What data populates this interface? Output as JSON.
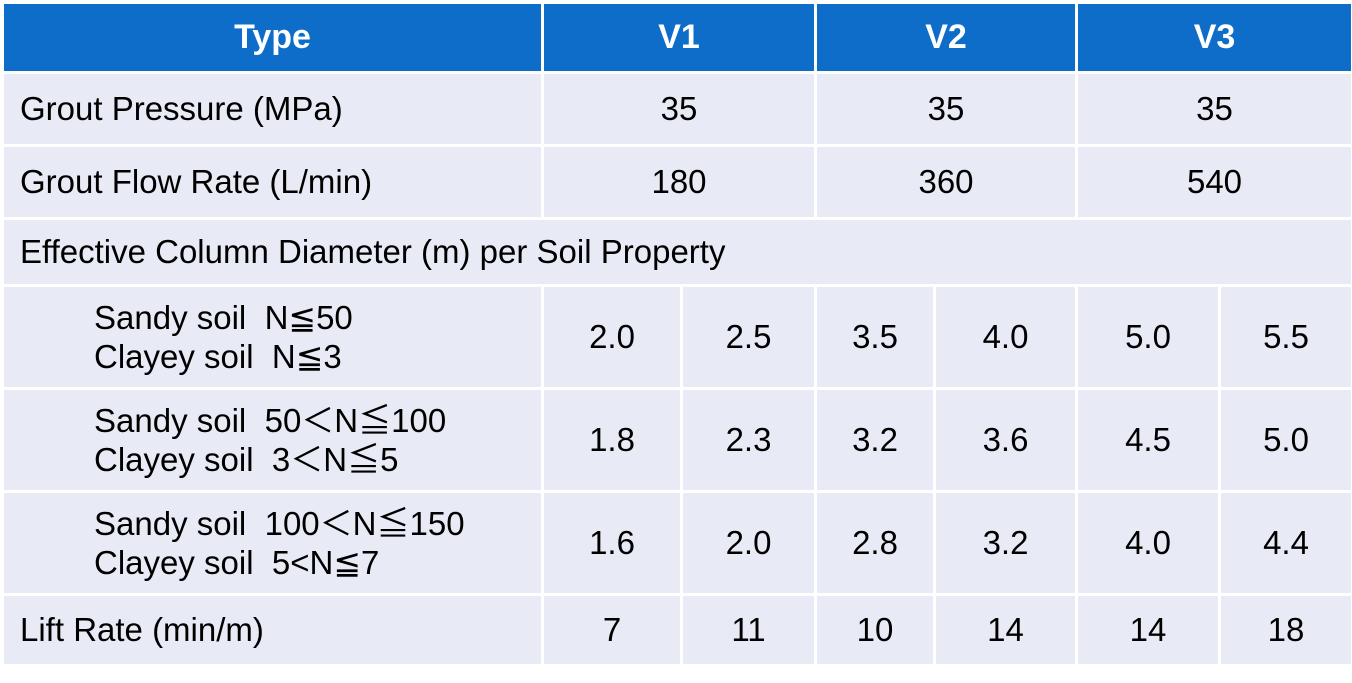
{
  "header": {
    "type": "Type",
    "v1": "V1",
    "v2": "V2",
    "v3": "V3"
  },
  "rows": {
    "pressure": {
      "label": "Grout Pressure (MPa)",
      "v1": "35",
      "v2": "35",
      "v3": "35"
    },
    "flow": {
      "label": "Grout Flow Rate (L/min)",
      "v1": "180",
      "v2": "360",
      "v3": "540"
    },
    "section": "Effective Column Diameter (m) per Soil Property",
    "soil": [
      {
        "sandy": "Sandy soil  N≦50",
        "clayey": "Clayey soil  N≦3",
        "values": [
          "2.0",
          "2.5",
          "3.5",
          "4.0",
          "5.0",
          "5.5"
        ]
      },
      {
        "sandy": "Sandy soil  50＜N≦100",
        "clayey": "Clayey soil  3＜N≦5",
        "values": [
          "1.8",
          "2.3",
          "3.2",
          "3.6",
          "4.5",
          "5.0"
        ]
      },
      {
        "sandy": "Sandy soil  100＜N≦150",
        "clayey": "Clayey soil  5<N≦7",
        "values": [
          "1.6",
          "2.0",
          "2.8",
          "3.2",
          "4.0",
          "4.4"
        ]
      }
    ],
    "lift": {
      "label": "Lift Rate (min/m)",
      "values": [
        "7",
        "11",
        "10",
        "14",
        "14",
        "18"
      ]
    }
  }
}
